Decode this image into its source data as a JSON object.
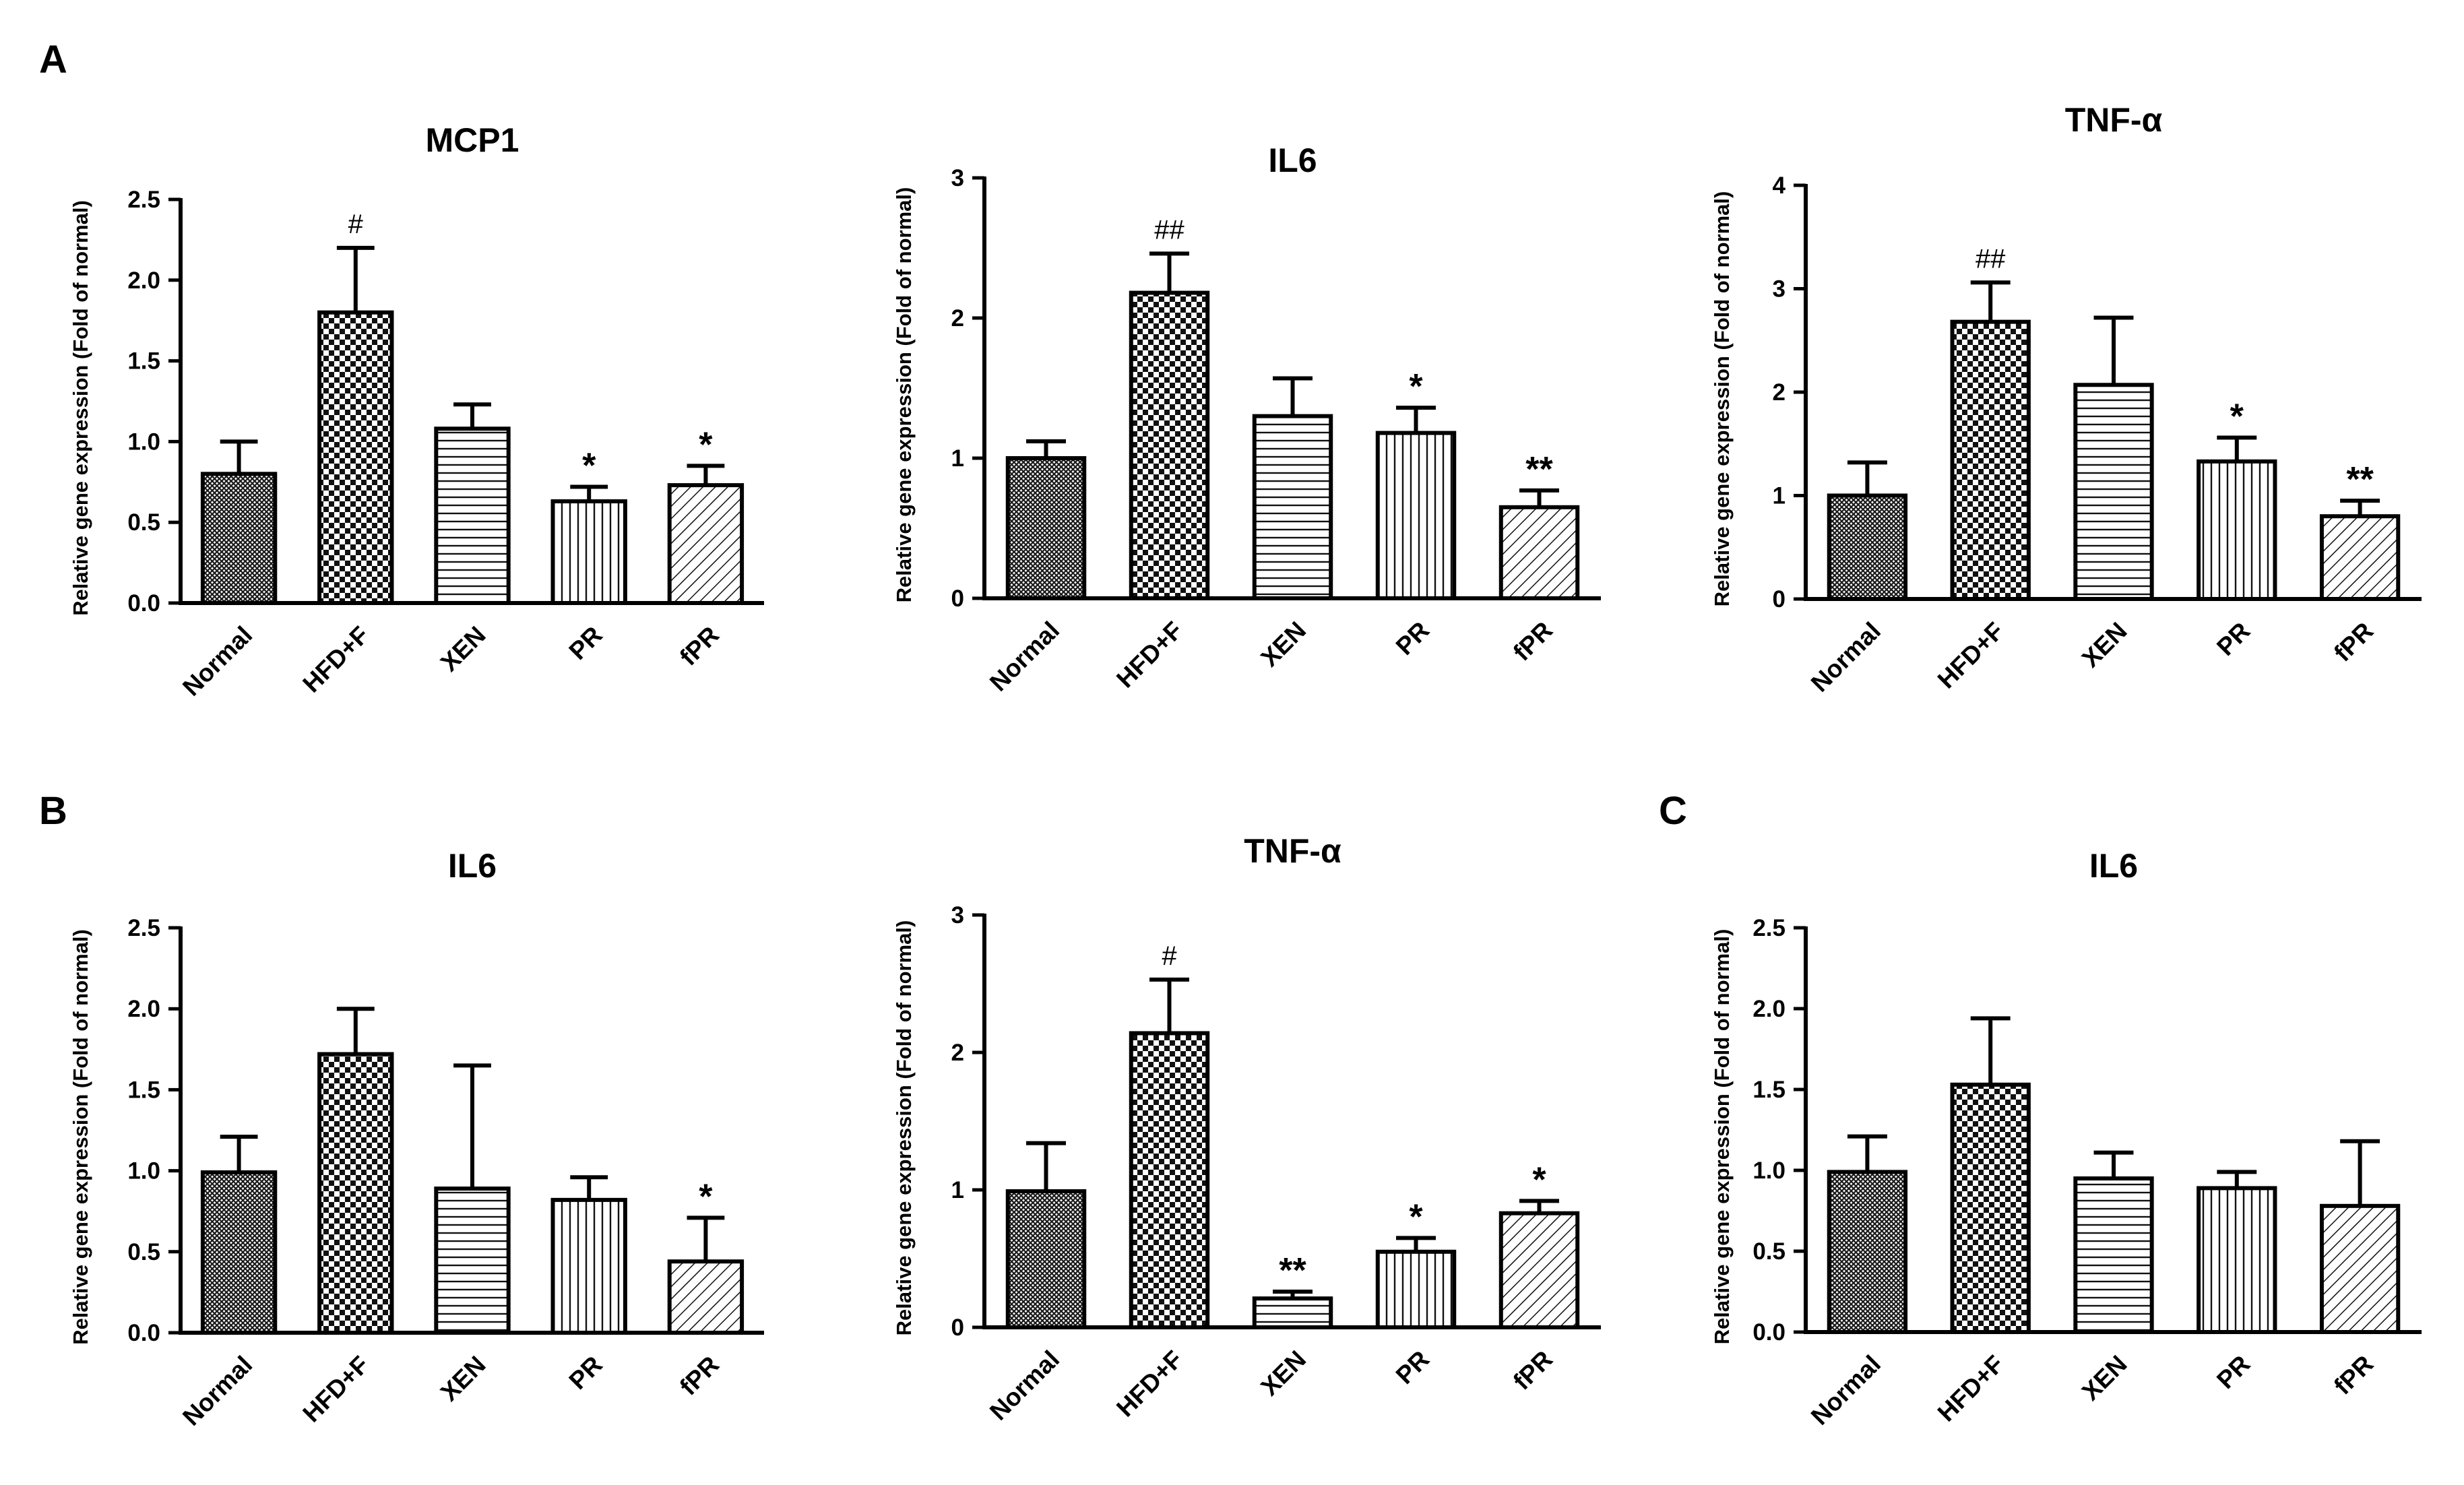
{
  "panels": [
    {
      "letter": "A"
    },
    {
      "letter": "B"
    },
    {
      "letter": "C"
    }
  ],
  "chart_data": [
    {
      "type": "bar",
      "panel": "A",
      "title": "MCP1",
      "ylabel": "Relative gene expression (Fold of normal)",
      "xlabel": "",
      "ylim": [
        0,
        2.5
      ],
      "yticks": [
        "0.0",
        "0.5",
        "1.0",
        "1.5",
        "2.0",
        "2.5"
      ],
      "categories": [
        "Normal",
        "HFD+F",
        "XEN",
        "PR",
        "fPR"
      ],
      "values": [
        0.8,
        1.8,
        1.08,
        0.63,
        0.73
      ],
      "errors": [
        0.2,
        0.4,
        0.15,
        0.09,
        0.12
      ],
      "annotations": [
        "",
        "#",
        "",
        "*",
        "*"
      ]
    },
    {
      "type": "bar",
      "panel": "A",
      "title": "IL6",
      "ylabel": "Relative gene expression (Fold of normal)",
      "xlabel": "",
      "ylim": [
        0,
        3
      ],
      "yticks": [
        "0",
        "1",
        "2",
        "3"
      ],
      "categories": [
        "Normal",
        "HFD+F",
        "XEN",
        "PR",
        "fPR"
      ],
      "values": [
        1.0,
        2.18,
        1.3,
        1.18,
        0.65
      ],
      "errors": [
        0.12,
        0.28,
        0.27,
        0.18,
        0.12
      ],
      "annotations": [
        "",
        "##",
        "",
        "*",
        "**"
      ]
    },
    {
      "type": "bar",
      "panel": "A",
      "title": "TNF-α",
      "ylabel": "Relative gene expression (Fold of normal)",
      "xlabel": "",
      "ylim": [
        0,
        4
      ],
      "yticks": [
        "0",
        "1",
        "2",
        "3",
        "4"
      ],
      "categories": [
        "Normal",
        "HFD+F",
        "XEN",
        "PR",
        "fPR"
      ],
      "values": [
        1.0,
        2.68,
        2.07,
        1.33,
        0.8
      ],
      "errors": [
        0.32,
        0.38,
        0.65,
        0.23,
        0.15
      ],
      "annotations": [
        "",
        "##",
        "",
        "*",
        "**"
      ]
    },
    {
      "type": "bar",
      "panel": "B",
      "title": "IL6",
      "ylabel": "Relative gene expression (Fold of normal)",
      "xlabel": "",
      "ylim": [
        0,
        2.5
      ],
      "yticks": [
        "0.0",
        "0.5",
        "1.0",
        "1.5",
        "2.0",
        "2.5"
      ],
      "categories": [
        "Normal",
        "HFD+F",
        "XEN",
        "PR",
        "fPR"
      ],
      "values": [
        0.99,
        1.72,
        0.89,
        0.82,
        0.44
      ],
      "errors": [
        0.22,
        0.28,
        0.76,
        0.14,
        0.27
      ],
      "annotations": [
        "",
        "",
        "",
        "",
        "*"
      ]
    },
    {
      "type": "bar",
      "panel": "B",
      "title": "TNF-α",
      "ylabel": "Relative gene expression (Fold of normal)",
      "xlabel": "",
      "ylim": [
        0,
        3
      ],
      "yticks": [
        "0",
        "1",
        "2",
        "3"
      ],
      "categories": [
        "Normal",
        "HFD+F",
        "XEN",
        "PR",
        "fPR"
      ],
      "values": [
        0.99,
        2.14,
        0.21,
        0.55,
        0.83
      ],
      "errors": [
        0.35,
        0.39,
        0.05,
        0.1,
        0.09
      ],
      "annotations": [
        "",
        "#",
        "**",
        "*",
        "*"
      ]
    },
    {
      "type": "bar",
      "panel": "C",
      "title": "IL6",
      "ylabel": "Relative gene expression (Fold of normal)",
      "xlabel": "",
      "ylim": [
        0,
        2.5
      ],
      "yticks": [
        "0.0",
        "0.5",
        "1.0",
        "1.5",
        "2.0",
        "2.5"
      ],
      "categories": [
        "Normal",
        "HFD+F",
        "XEN",
        "PR",
        "fPR"
      ],
      "values": [
        0.99,
        1.53,
        0.95,
        0.89,
        0.78
      ],
      "errors": [
        0.22,
        0.41,
        0.16,
        0.1,
        0.4
      ],
      "annotations": [
        "",
        "",
        "",
        "",
        ""
      ]
    }
  ]
}
